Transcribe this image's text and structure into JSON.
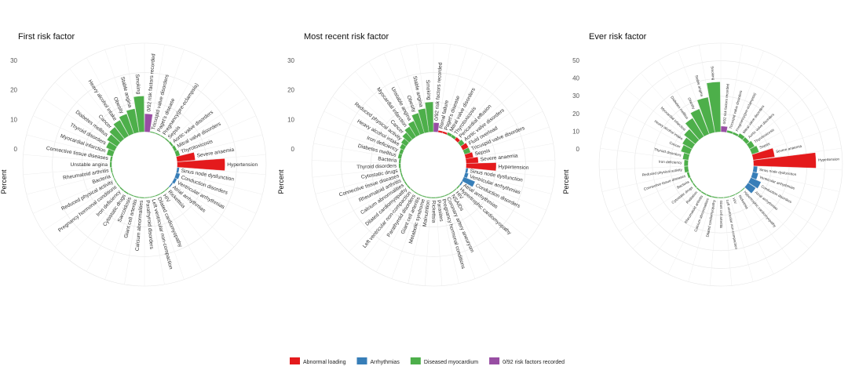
{
  "legend": [
    {
      "name": "Abnormal loading",
      "color": "#e41a1c"
    },
    {
      "name": "Arrhythmias",
      "color": "#377eb8"
    },
    {
      "name": "Diseased myocardium",
      "color": "#4daf4a"
    },
    {
      "name": "0/92 risk factors recorded",
      "color": "#984ea3"
    }
  ],
  "chart_data": [
    {
      "type": "bar",
      "subtype": "circular",
      "title": "First risk factor",
      "ylabel": "Percent",
      "yticks": [
        0,
        10,
        20,
        30
      ],
      "ylim": [
        0,
        30
      ],
      "groups": {
        "Abnormal loading": [
          "Severe anaemia",
          "Hypertension"
        ],
        "Arrhythmias": [
          "Sinus node dysfunction",
          "Conduction disorders",
          "Ventricular arrhythmias",
          "Atrial arrhythmias"
        ],
        "0/92 risk factors recorded": [
          "0/92 risk factors recorded"
        ]
      },
      "categories": [
        "0/92 risk factors recorded",
        "Tricuspid valve disorders",
        "Paget's disease",
        "Pregnancy(pre-eclampsia)",
        "Sepsis",
        "Aortic valve disorders",
        "Mitral valve disorders",
        "Thyrotoxicosis",
        "Severe anaemia",
        "Hypertension",
        "Sinus node dysfunction",
        "Conduction disorders",
        "Ventricular arrhythmias",
        "Atrial arrhythmias",
        "Rickettsia",
        "HIV",
        "Dilated cardiomyopathy",
        "Left ventricular non-compaction",
        "Parathyroid disorders",
        "Calcium abnormalities",
        "Giant cell arteritis",
        "Sarcoidosis",
        "Cytostatic drugs",
        "Iron deficiency",
        "Pregnancy hormonal conditions",
        "Reduced physical activity",
        "Bacteria",
        "Rheumatoid arthritis",
        "Unstable angina",
        "Connective tissue diseases",
        "Myocardial infarction",
        "Thyroid disorders",
        "Diabetes mellitus",
        "Cancer",
        "Heavy alcohol intake",
        "Obesity",
        "Stable angina",
        "Smoking"
      ],
      "values": [
        6,
        0.2,
        0.2,
        0.2,
        0.3,
        0.5,
        0.8,
        1.2,
        6,
        16,
        0.6,
        1.2,
        0.8,
        0.3,
        0.2,
        0.2,
        0.2,
        0.1,
        0.1,
        0.2,
        0.2,
        0.2,
        0.3,
        0.3,
        0.2,
        0.2,
        0.2,
        0.3,
        0.5,
        0.5,
        2,
        3,
        4,
        5,
        6,
        7,
        8,
        12
      ]
    },
    {
      "type": "bar",
      "subtype": "circular",
      "title": "Most recent risk factor",
      "ylabel": "Percent",
      "yticks": [
        0,
        10,
        20,
        30
      ],
      "ylim": [
        0,
        30
      ],
      "groups": {
        "Abnormal loading": [
          "Renal failure",
          "Paget's disease",
          "Pericardial effusion",
          "Fluid overload",
          "Sepsis",
          "Severe anaemia",
          "Hypertension"
        ],
        "Arrhythmias": [
          "Sinus node dysfunction",
          "Ventricular arrhythmias",
          "Conduction disorders",
          "Atrial arrhythmias"
        ],
        "0/92 risk factors recorded": [
          "0/92 risk factors recorded"
        ]
      },
      "categories": [
        "0/92 risk factors recorded",
        "Renal failure",
        "Paget's disease",
        "Mitral valve disorders",
        "Thyrotoxicosis",
        "Pericardial effusion",
        "Aortic valve disorders",
        "Fluid overload",
        "Tricuspid valve disorders",
        "Sepsis",
        "Severe anaemia",
        "Hypertension",
        "Sinus node dysfunction",
        "Ventricular arrhythmias",
        "Conduction disorders",
        "Atrial arrhythmias",
        "Hypertrophic cardiomyopathy",
        "HIV",
        "NSAIDs",
        "Coronary artery aneurysm",
        "Pregnancy hormonal conditions",
        "Parasites",
        "Rickettsia",
        "Malnutrition",
        "Metabolic syndrome",
        "Giant cell arteritis",
        "Parathyroid disorders",
        "Left ventricular non-compaction",
        "Dilated cardiomyopathy",
        "Calcium abnormalities",
        "Rheumatoid arthritis",
        "Connective tissue diseases",
        "Cytostatic drugs",
        "Thyroid disorders",
        "Bacteria",
        "Diabetes mellitus",
        "Iron deficiency",
        "Heavy alcohol intake",
        "Reduced physical activity",
        "Cancer",
        "Myocardial infarction",
        "Unstable angina",
        "Obesity",
        "Stable angina",
        "Smoking"
      ],
      "values": [
        3,
        0.5,
        0.5,
        0.8,
        0.8,
        1,
        1.5,
        2,
        2,
        2.5,
        4,
        10,
        0.6,
        1,
        4,
        0.4,
        0.3,
        0.2,
        0.2,
        0.2,
        0.2,
        0.2,
        0.2,
        0.2,
        0.2,
        0.2,
        0.2,
        0.2,
        0.3,
        0.3,
        0.3,
        0.3,
        0.3,
        0.5,
        0.5,
        1,
        1,
        1.5,
        2,
        3,
        4,
        5,
        7,
        8,
        10
      ]
    },
    {
      "type": "bar",
      "subtype": "circular",
      "title": "Ever risk factor",
      "ylabel": "Percent",
      "yticks": [
        0,
        10,
        20,
        30,
        40,
        50
      ],
      "ylim": [
        0,
        50
      ],
      "groups": {
        "Abnormal loading": [
          "Severe anaemia",
          "Hypertension"
        ],
        "Arrhythmias": [
          "Sinus node dysfunction",
          "Ventricular arrhythmias",
          "Conduction disorders",
          "Atrial arrhythmias"
        ],
        "0/92 risk factors recorded": [
          "0/92 risk factors recorded"
        ]
      },
      "categories": [
        "0/92 risk factors recorded",
        "Tricuspid valve disorders",
        "Pregnancy(pre-eclampsia)",
        "Mitral valve disorders",
        "Aortic valve disorders",
        "Thyrotoxicosis",
        "Sepsis",
        "Severe anaemia",
        "Hypertension",
        "Sinus node dysfunction",
        "Ventricular arrhythmias",
        "Conduction disorders",
        "Atrial arrhythmias",
        "Hypertrophic cardiomyopathy",
        "Rickettsia",
        "HIV",
        "Left ventricular non-compaction",
        "Giant cell arteritis",
        "Dilated cardiomyopathy",
        "Calcium abnormalities",
        "Rheumatoid arthritis",
        "Radiation",
        "Cytostatic drugs",
        "Bacteria",
        "Connective tissue diseases",
        "Reduced physical activity",
        "Iron deficiency",
        "Thyroid disorders",
        "Cancer",
        "Heavy alcohol intake",
        "Myocardial infarction",
        "Diabetes mellitus",
        "Obesity",
        "Stable angina",
        "Smoking"
      ],
      "values": [
        3,
        1,
        1,
        2,
        2,
        3,
        4,
        12,
        35,
        2,
        3,
        6,
        5,
        0.3,
        0.3,
        0.3,
        0.3,
        0.3,
        0.4,
        0.5,
        0.5,
        0.5,
        0.5,
        0.5,
        1,
        2,
        2,
        3,
        5,
        6,
        8,
        12,
        15,
        20,
        28
      ]
    }
  ]
}
